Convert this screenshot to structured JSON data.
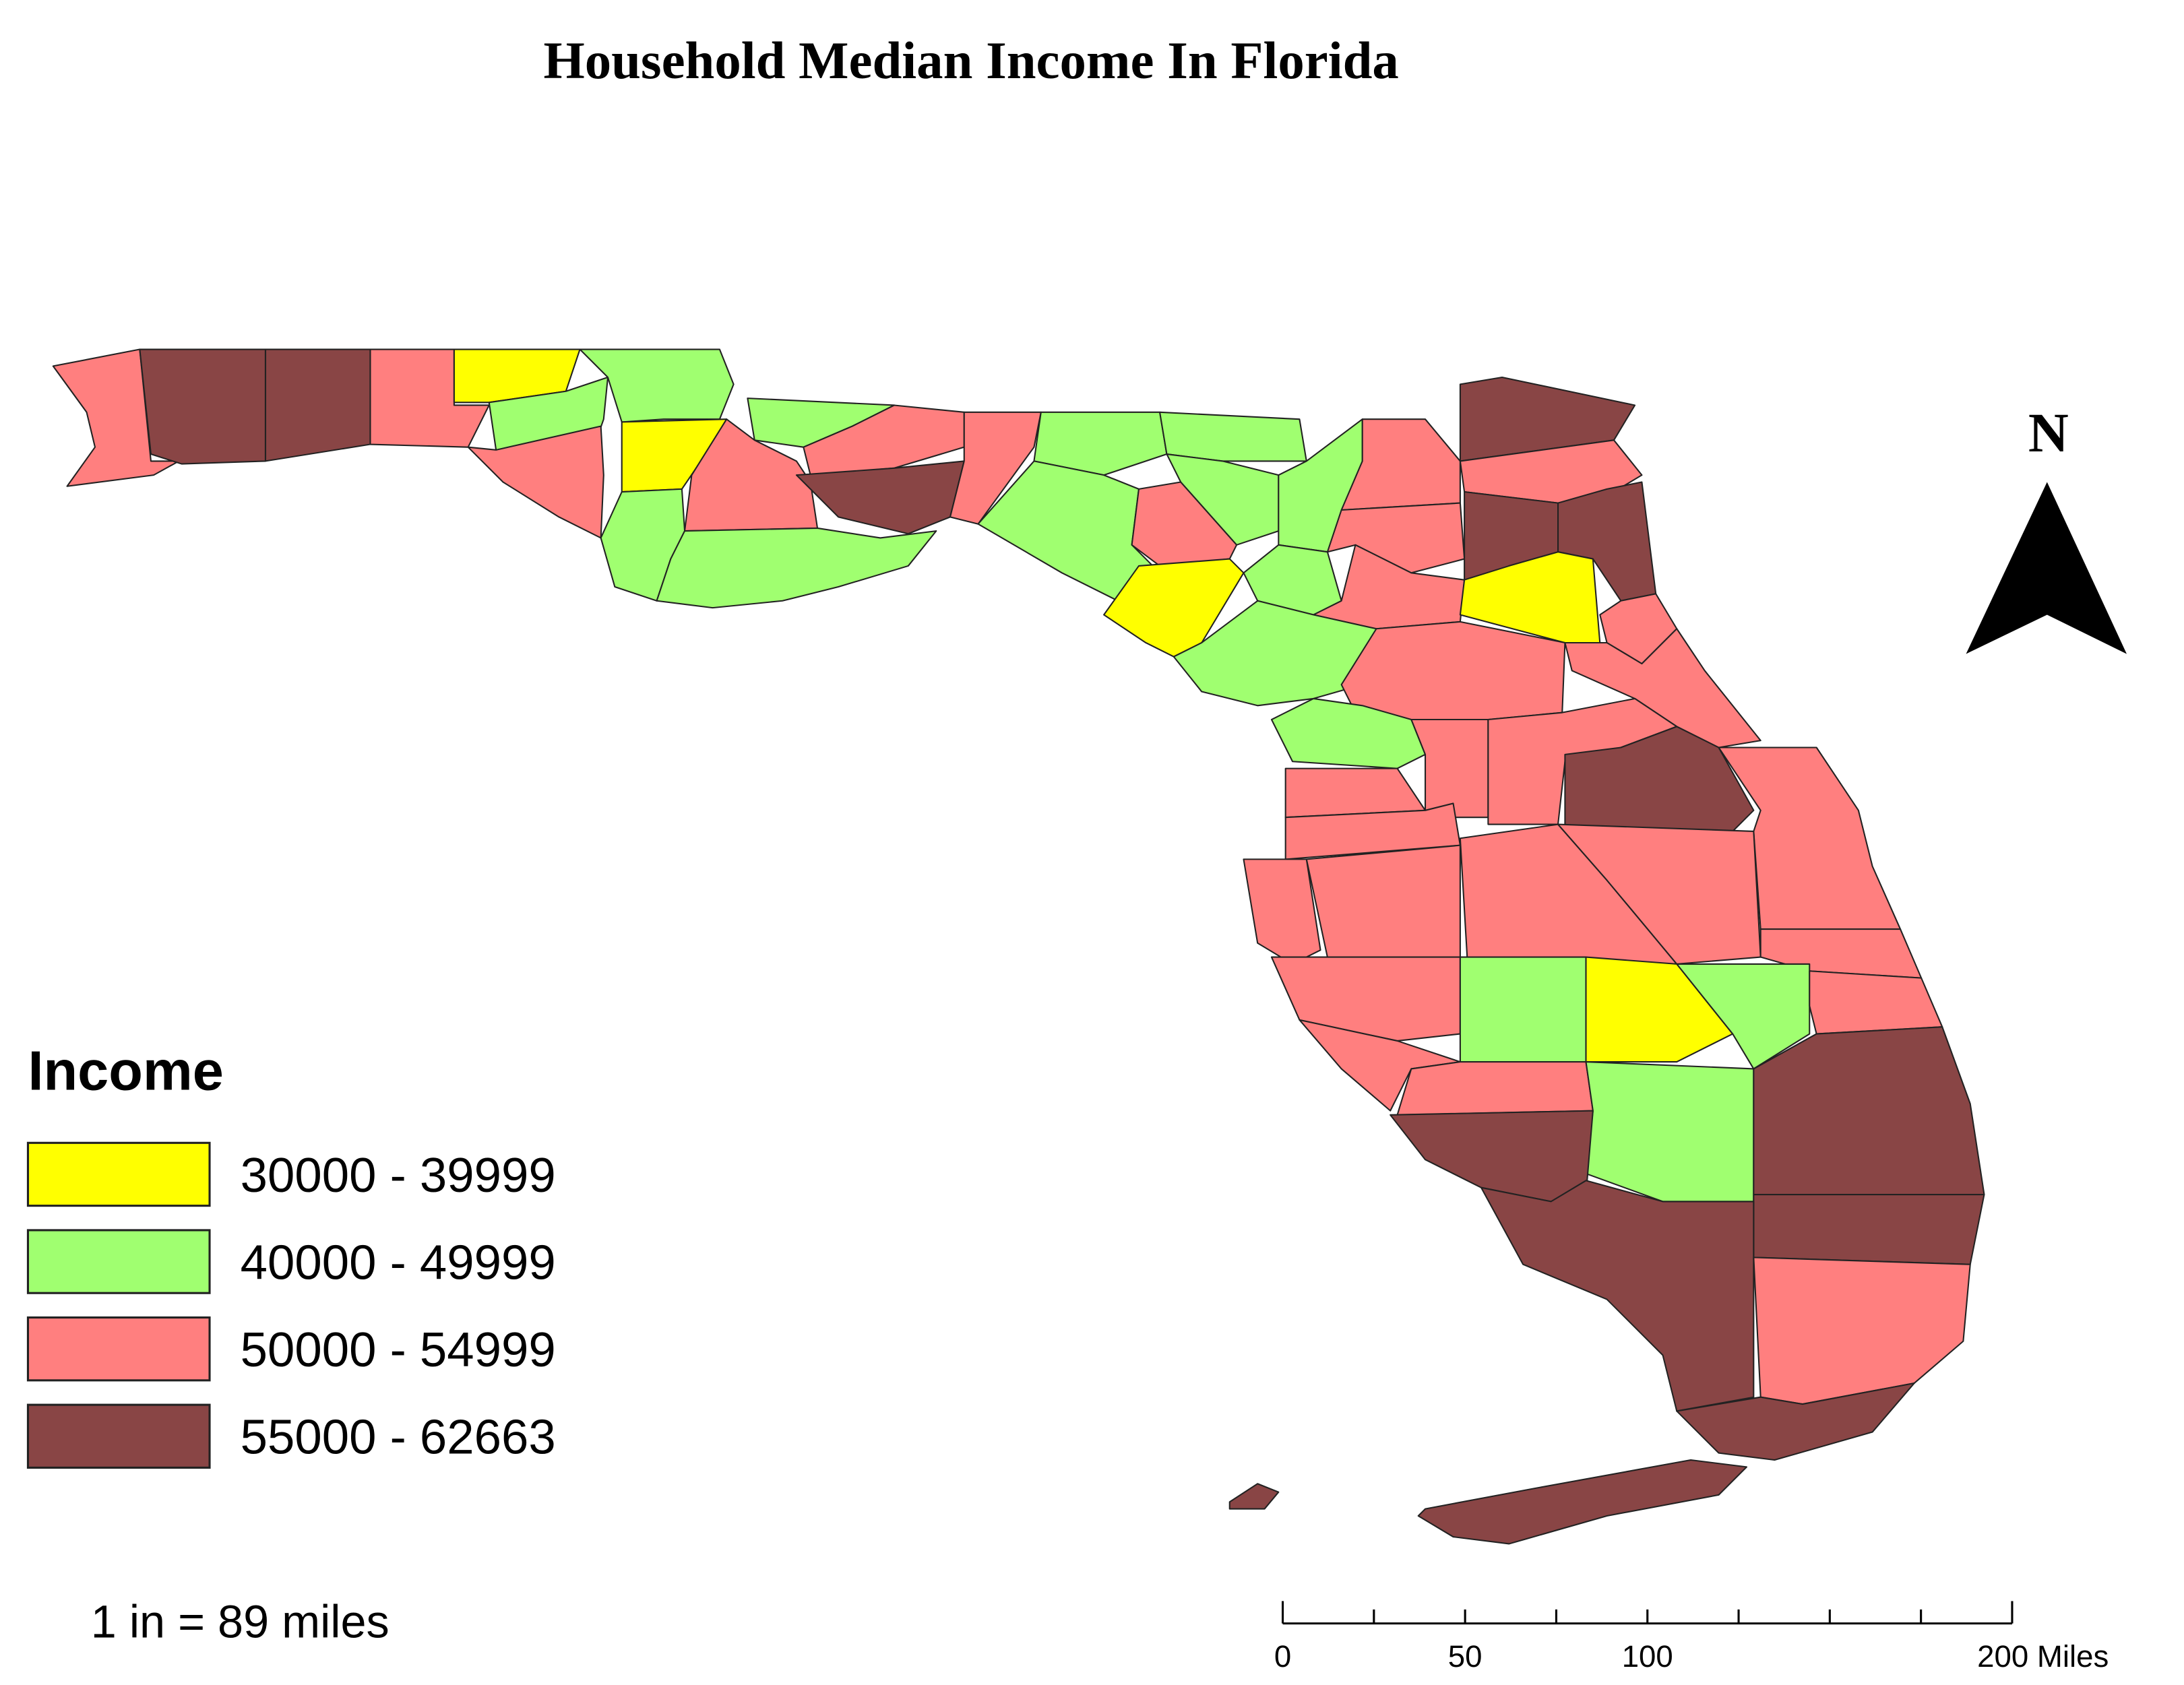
{
  "title": "Household Median Income In Florida",
  "legend": {
    "title": "Income",
    "items": [
      {
        "label": "30000 - 39999",
        "color": "#ffff00"
      },
      {
        "label": "40000 - 49999",
        "color": "#a0ff70"
      },
      {
        "label": "50000 - 54999",
        "color": "#ff7f7f"
      },
      {
        "label": "55000 - 62663",
        "color": "#894545"
      }
    ]
  },
  "scale_text": "1 in = 89 miles",
  "scale_bar": {
    "labels": [
      "0",
      "50",
      "100",
      "200 Miles"
    ]
  },
  "north": "N"
}
